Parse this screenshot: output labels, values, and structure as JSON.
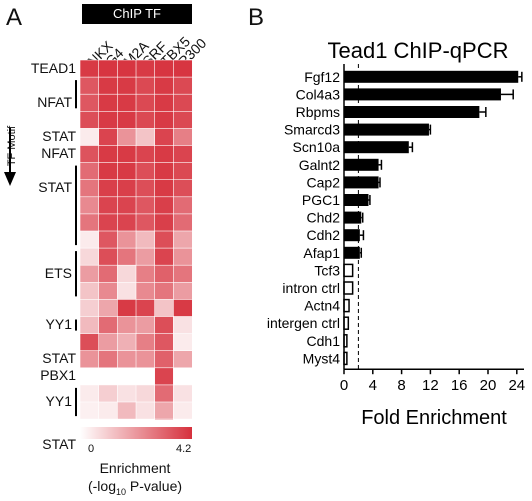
{
  "panel_a": {
    "letter": "A",
    "header": "ChIP TF",
    "columns": [
      "NKX",
      "G4",
      "M2A",
      "SRF",
      "TBX5",
      "P300"
    ],
    "y_axis_label": "TF Motif",
    "motifs": [
      {
        "label": "TEAD1",
        "row": 0,
        "bar": null
      },
      {
        "label": "NFAT",
        "row": 2,
        "bar": [
          1,
          3
        ]
      },
      {
        "label": "STAT",
        "row": 4,
        "bar": null
      },
      {
        "label": "NFAT",
        "row": 5,
        "bar": null
      },
      {
        "label": "STAT",
        "row": 7,
        "bar": [
          6,
          11
        ]
      },
      {
        "label": "ETS",
        "row": 12,
        "bar": [
          11,
          14
        ]
      },
      {
        "label": "YY1",
        "row": 15,
        "bar": [
          15,
          16
        ]
      },
      {
        "label": "STAT",
        "row": 17,
        "bar": null
      },
      {
        "label": "PBX1",
        "row": 18,
        "bar": null
      },
      {
        "label": "YY1",
        "row": 19.5,
        "bar": [
          19,
          21
        ]
      },
      {
        "label": "STAT",
        "row": 22,
        "bar": null
      }
    ],
    "color_scale": {
      "min_label": "0",
      "max_label": "4.2",
      "min": 0,
      "max": 4.2,
      "low_color": "#ffffff",
      "high_color": "#d6303c"
    },
    "legend_line1": "Enrichment",
    "legend_line2_pre": "(-log",
    "legend_line2_sub": "10",
    "legend_line2_post": " P-value)"
  },
  "chart_data": [
    {
      "type": "heatmap",
      "x_categories": [
        "NKX",
        "G4",
        "M2A",
        "SRF",
        "TBX5",
        "P300"
      ],
      "y_labels": [
        "TEAD1",
        "",
        "NFAT",
        "",
        "STAT",
        "NFAT",
        "",
        "",
        "STAT",
        "",
        "",
        "",
        "ETS",
        "",
        "",
        "YY1",
        "",
        "STAT",
        "PBX1",
        "",
        "YY1",
        "",
        "STAT"
      ],
      "values": [
        [
          4.0,
          4.1,
          4.1,
          4.0,
          4.1,
          4.1
        ],
        [
          3.4,
          4.0,
          4.0,
          3.7,
          4.0,
          3.7
        ],
        [
          3.4,
          4.0,
          4.0,
          3.7,
          4.0,
          3.7
        ],
        [
          3.6,
          4.0,
          4.0,
          3.7,
          4.0,
          3.7
        ],
        [
          0.4,
          3.8,
          2.2,
          1.2,
          3.8,
          2.6
        ],
        [
          3.5,
          4.0,
          4.0,
          3.8,
          4.0,
          3.8
        ],
        [
          3.0,
          4.0,
          4.0,
          3.6,
          4.0,
          3.7
        ],
        [
          2.8,
          3.9,
          3.9,
          3.6,
          4.0,
          3.6
        ],
        [
          2.4,
          3.8,
          3.8,
          3.4,
          3.9,
          3.0
        ],
        [
          2.8,
          3.8,
          3.8,
          3.4,
          3.9,
          3.0
        ],
        [
          0.4,
          3.4,
          2.2,
          1.4,
          3.6,
          1.8
        ],
        [
          0.8,
          3.6,
          2.8,
          2.0,
          3.8,
          2.2
        ],
        [
          2.0,
          3.0,
          0.8,
          2.6,
          3.2,
          2.8
        ],
        [
          1.2,
          2.4,
          0.6,
          2.4,
          2.8,
          2.0
        ],
        [
          1.0,
          1.8,
          4.0,
          3.8,
          1.2,
          4.0
        ],
        [
          1.4,
          3.0,
          2.2,
          2.0,
          3.6,
          0.6
        ],
        [
          3.6,
          2.0,
          1.6,
          2.6,
          3.4,
          0.4
        ],
        [
          2.2,
          2.8,
          2.2,
          2.2,
          3.2,
          1.8
        ],
        [
          0.0,
          0.0,
          0.0,
          0.0,
          3.8,
          0.0
        ],
        [
          0.4,
          1.0,
          0.6,
          0.8,
          3.0,
          0.6
        ],
        [
          0.3,
          0.4,
          1.4,
          0.6,
          1.8,
          0.4
        ],
        [
          0.0,
          0.0,
          0.0,
          0.0,
          1.8,
          0.0
        ],
        [
          1.0,
          1.4,
          1.4,
          1.2,
          1.8,
          1.2
        ]
      ],
      "color_min": 0,
      "color_max": 4.2
    },
    {
      "type": "bar",
      "orientation": "horizontal",
      "title": "Tead1 ChIP-qPCR",
      "xlabel": "Fold Enrichment",
      "xlim": [
        0,
        25
      ],
      "xticks": [
        0,
        4,
        8,
        12,
        16,
        20,
        24
      ],
      "reference_line": 2,
      "categories": [
        "Fgf12",
        "Col4a3",
        "Rbpms",
        "Smarcd3",
        "Scn10a",
        "Galnt2",
        "Cap2",
        "PGC1",
        "Chd2",
        "Cdh2",
        "Afap1",
        "Tcf3",
        "intron ctrl",
        "Actn4",
        "intergen ctrl",
        "Cdh1",
        "Myst4"
      ],
      "values": [
        24.2,
        21.8,
        18.8,
        11.8,
        9.0,
        4.8,
        4.8,
        3.4,
        2.4,
        2.2,
        2.2,
        1.2,
        1.2,
        0.7,
        0.6,
        0.4,
        0.4
      ],
      "errors": [
        0.5,
        1.7,
        0.9,
        0.2,
        0.5,
        0.4,
        0.2,
        0.2,
        0.2,
        0.5,
        0.2,
        0.0,
        0.0,
        0.0,
        0.0,
        0.0,
        0.0
      ],
      "fill": [
        "black",
        "black",
        "black",
        "black",
        "black",
        "black",
        "black",
        "black",
        "black",
        "black",
        "black",
        "white",
        "white",
        "white",
        "white",
        "white",
        "white"
      ]
    }
  ],
  "panel_b": {
    "letter": "B"
  }
}
